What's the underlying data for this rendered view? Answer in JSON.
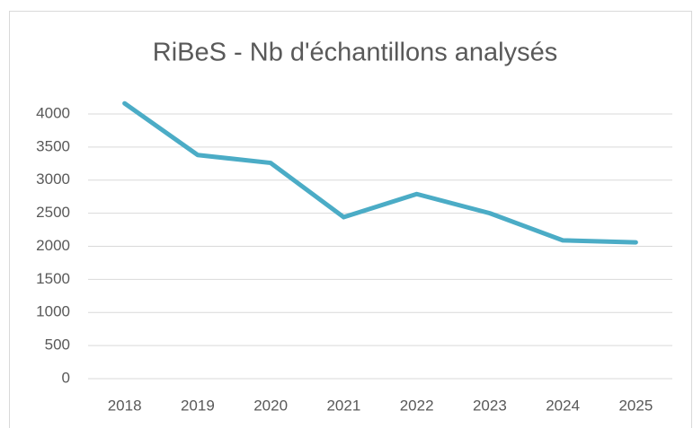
{
  "chart_data": {
    "type": "line",
    "title": "RiBeS - Nb d'échantillons analysés",
    "categories": [
      "2018",
      "2019",
      "2020",
      "2021",
      "2022",
      "2023",
      "2024",
      "2025"
    ],
    "series": [
      {
        "name": "Nb d'échantillons analysés",
        "color": "#4bacc6",
        "values": [
          4160,
          3380,
          3260,
          2440,
          2790,
          2500,
          2090,
          2060
        ]
      }
    ],
    "ylim": [
      0,
      4500
    ],
    "yticks": [
      0,
      500,
      1000,
      1500,
      2000,
      2500,
      3000,
      3500,
      4000
    ],
    "grid": true
  }
}
